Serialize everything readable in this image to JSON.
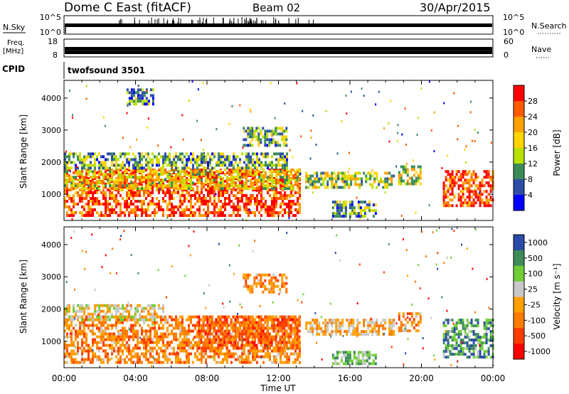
{
  "header": {
    "title": "Dome C East (fitACF)",
    "beam": "Beam 02",
    "date": "30/Apr/2015"
  },
  "top_strips": {
    "nsky_label": "N.Sky",
    "nsky_ticks": [
      "10^5",
      "10^0"
    ],
    "nsearch_label": "N.Search",
    "nsearch_ticks": [
      "10^5",
      "10^0"
    ],
    "freq_label": "Freq.",
    "freq_unit": "[MHz]",
    "freq_ticks": [
      "18",
      "8"
    ],
    "nave_label": "Nave",
    "nave_ticks": [
      "60",
      "0"
    ],
    "cpid_label": "CPID",
    "cpid_text": "twofsound 3501"
  },
  "chart_data": [
    {
      "type": "heatmap",
      "name": "power-panel",
      "ylabel": "Slant Range [km]",
      "yticks": [
        "4000",
        "3000",
        "2000",
        "1000"
      ],
      "ytick_values": [
        4000,
        3000,
        2000,
        1000
      ],
      "ylim": [
        180,
        4550
      ],
      "colorbar_label": "Power [dB]",
      "colorbar_ticks": [
        "28",
        "24",
        "20",
        "16",
        "12",
        "8",
        "4"
      ],
      "colorbar_colors": [
        "#ff0000",
        "#ff5a00",
        "#ffa000",
        "#ffd400",
        "#b8e000",
        "#3c8c5a",
        "#2d4ea6",
        "#0000ff"
      ],
      "regions": [
        {
          "x": [
            0.0,
            13.2
          ],
          "y": [
            300,
            1800
          ],
          "level": 0.85
        },
        {
          "x": [
            0.0,
            13.2
          ],
          "y": [
            1150,
            1750
          ],
          "level": 0.55
        },
        {
          "x": [
            0.0,
            12.5
          ],
          "y": [
            1800,
            2300
          ],
          "level": 0.35
        },
        {
          "x": [
            13.5,
            18.5
          ],
          "y": [
            1250,
            1700
          ],
          "level": 0.45
        },
        {
          "x": [
            18.7,
            20.0
          ],
          "y": [
            1300,
            1900
          ],
          "level": 0.5
        },
        {
          "x": [
            21.2,
            24.0
          ],
          "y": [
            600,
            1750
          ],
          "level": 0.85
        },
        {
          "x": [
            15.0,
            17.5
          ],
          "y": [
            300,
            800
          ],
          "level": 0.35
        },
        {
          "x": [
            3.5,
            5.0
          ],
          "y": [
            3800,
            4300
          ],
          "level": 0.3
        },
        {
          "x": [
            10.0,
            12.5
          ],
          "y": [
            2500,
            3100
          ],
          "level": 0.35
        }
      ]
    },
    {
      "type": "heatmap",
      "name": "velocity-panel",
      "ylabel": "Slant Range [km]",
      "yticks": [
        "4000",
        "3000",
        "2000",
        "1000"
      ],
      "ytick_values": [
        4000,
        3000,
        2000,
        1000
      ],
      "ylim": [
        180,
        4550
      ],
      "colorbar_label": "Velocity [m s⁻¹]",
      "colorbar_ticks": [
        "1000",
        "500",
        "100",
        "25",
        "-25",
        "-100",
        "-500",
        "-1000"
      ],
      "colorbar_colors": [
        "#2a4aa8",
        "#3d8c5a",
        "#6fcf35",
        "#c8c8c8",
        "#ffa000",
        "#ff7a00",
        "#ff3c00",
        "#ff0000"
      ],
      "regions": [
        {
          "x": [
            0.0,
            13.2
          ],
          "y": [
            300,
            1800
          ],
          "level": -0.3
        },
        {
          "x": [
            0.0,
            5.5
          ],
          "y": [
            1700,
            2150
          ],
          "level": 0.05
        },
        {
          "x": [
            7.5,
            13.2
          ],
          "y": [
            800,
            1800
          ],
          "level": -0.5
        },
        {
          "x": [
            13.5,
            18.5
          ],
          "y": [
            1250,
            1700
          ],
          "level": -0.1
        },
        {
          "x": [
            18.7,
            20.0
          ],
          "y": [
            1300,
            1900
          ],
          "level": -0.3
        },
        {
          "x": [
            21.2,
            24.0
          ],
          "y": [
            500,
            1700
          ],
          "level": 0.55
        },
        {
          "x": [
            15.0,
            17.5
          ],
          "y": [
            300,
            700
          ],
          "level": 0.4
        },
        {
          "x": [
            10.0,
            12.5
          ],
          "y": [
            2500,
            3100
          ],
          "level": -0.3
        }
      ]
    }
  ],
  "xaxis": {
    "label": "Time UT",
    "ticks": [
      "00:00",
      "04:00",
      "08:00",
      "12:00",
      "16:00",
      "20:00",
      "00:00"
    ],
    "tick_hours": [
      0,
      4,
      8,
      12,
      16,
      20,
      24
    ],
    "range_hours": [
      0,
      24
    ]
  }
}
